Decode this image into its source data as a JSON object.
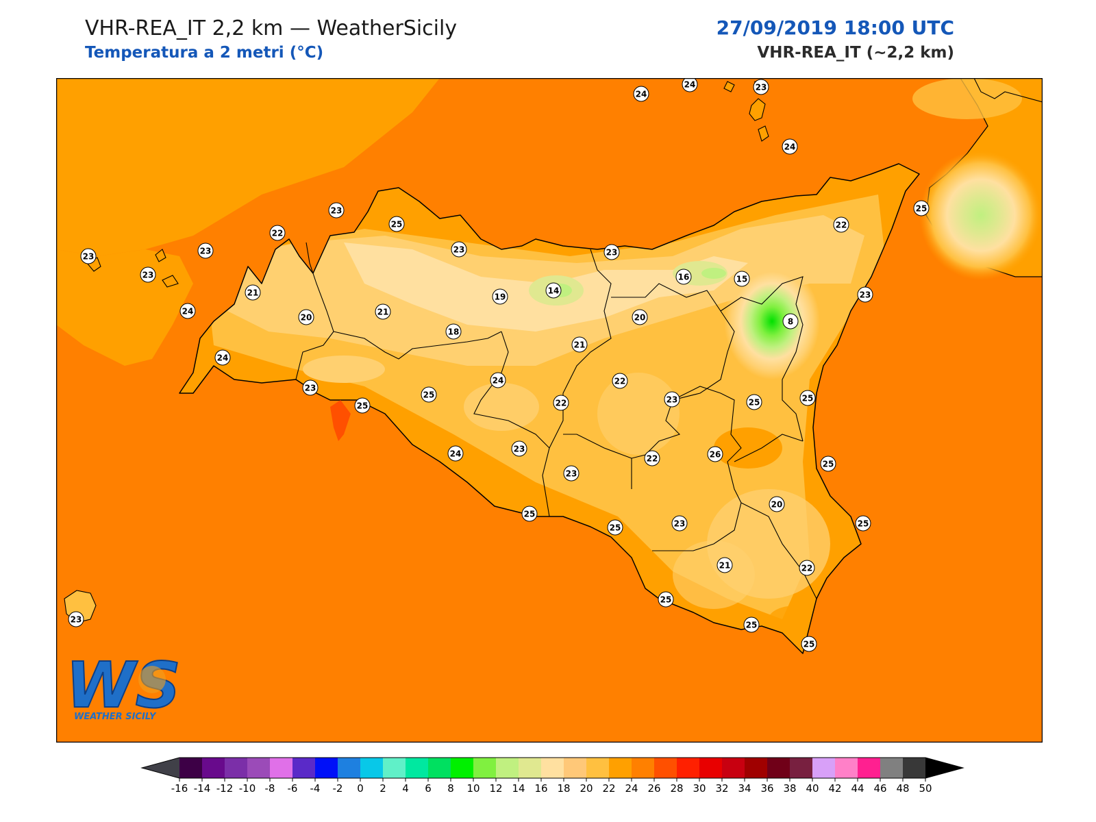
{
  "header": {
    "title": "VHR-REA_IT 2,2 km — WeatherSicily",
    "subtitle": "Temperatura a 2 metri (°C)",
    "datetime": "27/09/2019 18:00 UTC",
    "model": "VHR-REA_IT (~2,2 km)"
  },
  "colors": {
    "sea": "#ff8000",
    "t24": "#ffa000",
    "t22": "#ffc040",
    "t20": "#ffd070",
    "t18": "#ffe0a0",
    "t16": "#e0e890",
    "t14": "#c0f080",
    "t12": "#80f040",
    "t10": "#20e020",
    "coast": "#000000",
    "accent": "#1457b8"
  },
  "stations": [
    {
      "v": "24"
    },
    {
      "v": "24"
    },
    {
      "v": "23"
    },
    {
      "v": "24"
    },
    {
      "v": "23"
    },
    {
      "v": "25"
    },
    {
      "v": "22"
    },
    {
      "v": "23"
    },
    {
      "v": "23"
    },
    {
      "v": "23"
    },
    {
      "v": "23"
    },
    {
      "v": "23"
    },
    {
      "v": "25"
    },
    {
      "v": "22"
    },
    {
      "v": "21"
    },
    {
      "v": "24"
    },
    {
      "v": "20"
    },
    {
      "v": "21"
    },
    {
      "v": "19"
    },
    {
      "v": "14"
    },
    {
      "v": "16"
    },
    {
      "v": "15"
    },
    {
      "v": "23"
    },
    {
      "v": "18"
    },
    {
      "v": "20"
    },
    {
      "v": "8"
    },
    {
      "v": "21"
    },
    {
      "v": "24"
    },
    {
      "v": "23"
    },
    {
      "v": "25"
    },
    {
      "v": "25"
    },
    {
      "v": "24"
    },
    {
      "v": "22"
    },
    {
      "v": "22"
    },
    {
      "v": "23"
    },
    {
      "v": "25"
    },
    {
      "v": "25"
    },
    {
      "v": "24"
    },
    {
      "v": "23"
    },
    {
      "v": "22"
    },
    {
      "v": "26"
    },
    {
      "v": "23"
    },
    {
      "v": "25"
    },
    {
      "v": "25"
    },
    {
      "v": "25"
    },
    {
      "v": "20"
    },
    {
      "v": "23"
    },
    {
      "v": "25"
    },
    {
      "v": "21"
    },
    {
      "v": "22"
    },
    {
      "v": "25"
    },
    {
      "v": "25"
    },
    {
      "v": "25"
    },
    {
      "v": "23"
    }
  ],
  "legend": {
    "ticks": [
      "-16",
      "-14",
      "-12",
      "-10",
      "-8",
      "-6",
      "-4",
      "-2",
      "0",
      "2",
      "4",
      "6",
      "8",
      "10",
      "12",
      "14",
      "16",
      "18",
      "20",
      "22",
      "24",
      "26",
      "28",
      "30",
      "32",
      "34",
      "36",
      "38",
      "40",
      "42",
      "44",
      "46",
      "48",
      "50"
    ],
    "colors": [
      "#3d0046",
      "#680a8c",
      "#7b2fa8",
      "#9b4bb8",
      "#e070e8",
      "#5a2ac8",
      "#0010f8",
      "#1e80e0",
      "#08c8e8",
      "#60f0c8",
      "#00e8a0",
      "#00e060",
      "#00f000",
      "#80f040",
      "#c0f080",
      "#e0e890",
      "#ffe0a0",
      "#ffc878",
      "#ffc040",
      "#ffa000",
      "#ff8000",
      "#ff5000",
      "#ff2000",
      "#e80000",
      "#c80010",
      "#a00000",
      "#700018",
      "#782040",
      "#d8a0f8",
      "#ff80c8",
      "#ff2090",
      "#808080",
      "#383838"
    ]
  },
  "logo": {
    "letters": "WS",
    "caption": "WEATHER SICILY"
  }
}
